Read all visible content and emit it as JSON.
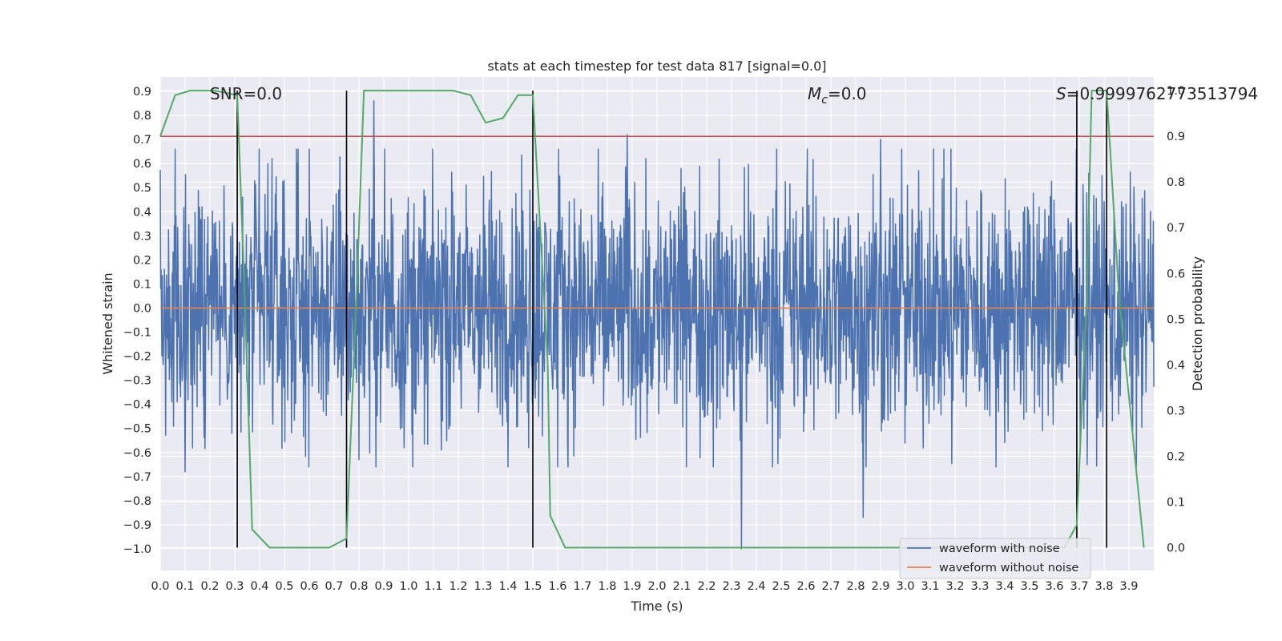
{
  "chart_data": {
    "type": "line",
    "title": "stats at each timestep for test data 817 [signal=0.0]",
    "xlabel": "Time (s)",
    "ylabel": "Whitened strain",
    "y2label": "Detection probability",
    "xlim": [
      0.0,
      4.0
    ],
    "ylim": [
      -1.09,
      0.96
    ],
    "y2lim": [
      -0.05,
      1.03
    ],
    "x_ticks": [
      "0.0",
      "0.1",
      "0.2",
      "0.3",
      "0.4",
      "0.5",
      "0.6",
      "0.7",
      "0.8",
      "0.9",
      "1.0",
      "1.1",
      "1.2",
      "1.3",
      "1.4",
      "1.5",
      "1.6",
      "1.7",
      "1.8",
      "1.9",
      "2.0",
      "2.1",
      "2.2",
      "2.3",
      "2.4",
      "2.5",
      "2.6",
      "2.7",
      "2.8",
      "2.9",
      "3.0",
      "3.1",
      "3.2",
      "3.3",
      "3.4",
      "3.5",
      "3.6",
      "3.7",
      "3.8",
      "3.9"
    ],
    "y_ticks": [
      "0.9",
      "0.8",
      "0.7",
      "0.6",
      "0.5",
      "0.4",
      "0.3",
      "0.2",
      "0.1",
      "0.0",
      "−0.1",
      "−0.2",
      "−0.3",
      "−0.4",
      "−0.5",
      "−0.6",
      "−0.7",
      "−0.8",
      "−0.9",
      "−1.0"
    ],
    "y2_ticks": [
      "1.0",
      "0.9",
      "0.8",
      "0.7",
      "0.6",
      "0.5",
      "0.4",
      "0.3",
      "0.2",
      "0.1",
      "0.0"
    ],
    "grid": true,
    "legend_position": "bottom-right",
    "legend": [
      "waveform with noise",
      "waveform without noise"
    ],
    "annotations": {
      "snr": "SNR=0.0",
      "mc_symbol": "M",
      "mc_sub": "c",
      "mc_value": "=0.0",
      "s_symbol": "S",
      "s_value": "=0.9999762773513794"
    },
    "series": [
      {
        "name": "waveform with noise",
        "color": "#4c72b0",
        "envelope_peaks": [
          {
            "x": 0.86,
            "y": 0.86
          },
          {
            "x": 1.88,
            "y": 0.72
          },
          {
            "x": 2.9,
            "y": 0.7
          },
          {
            "x": 2.34,
            "y": -1.0
          },
          {
            "x": 2.83,
            "y": -0.87
          },
          {
            "x": 0.1,
            "y": -0.68
          }
        ]
      },
      {
        "name": "waveform without noise",
        "color": "#dd8452",
        "values": [
          {
            "x": 0.0,
            "y": 0.0
          },
          {
            "x": 4.0,
            "y": 0.0
          }
        ]
      },
      {
        "name": "",
        "axis": "right",
        "color": "#55a868",
        "points": [
          {
            "x": 0.0,
            "y": 0.9
          },
          {
            "x": 0.06,
            "y": 0.99
          },
          {
            "x": 0.12,
            "y": 1.0
          },
          {
            "x": 0.22,
            "y": 1.0
          },
          {
            "x": 0.31,
            "y": 0.99
          },
          {
            "x": 0.34,
            "y": 0.55
          },
          {
            "x": 0.37,
            "y": 0.04
          },
          {
            "x": 0.44,
            "y": 0.0
          },
          {
            "x": 0.68,
            "y": 0.0
          },
          {
            "x": 0.75,
            "y": 0.02
          },
          {
            "x": 0.79,
            "y": 0.55
          },
          {
            "x": 0.82,
            "y": 1.0
          },
          {
            "x": 1.18,
            "y": 1.0
          },
          {
            "x": 1.25,
            "y": 0.99
          },
          {
            "x": 1.31,
            "y": 0.93
          },
          {
            "x": 1.38,
            "y": 0.94
          },
          {
            "x": 1.44,
            "y": 0.99
          },
          {
            "x": 1.5,
            "y": 0.99
          },
          {
            "x": 1.56,
            "y": 0.4
          },
          {
            "x": 1.57,
            "y": 0.07
          },
          {
            "x": 1.63,
            "y": 0.0
          },
          {
            "x": 3.64,
            "y": 0.0
          },
          {
            "x": 3.69,
            "y": 0.05
          },
          {
            "x": 3.73,
            "y": 0.55
          },
          {
            "x": 3.75,
            "y": 1.0
          },
          {
            "x": 3.81,
            "y": 1.0
          },
          {
            "x": 3.86,
            "y": 0.55
          },
          {
            "x": 3.96,
            "y": 0.0
          }
        ]
      }
    ],
    "threshold": {
      "axis": "right",
      "value": 0.9,
      "color": "#c44e52"
    },
    "event_markers": [
      0.31,
      0.75,
      1.5,
      3.69,
      3.81
    ]
  }
}
